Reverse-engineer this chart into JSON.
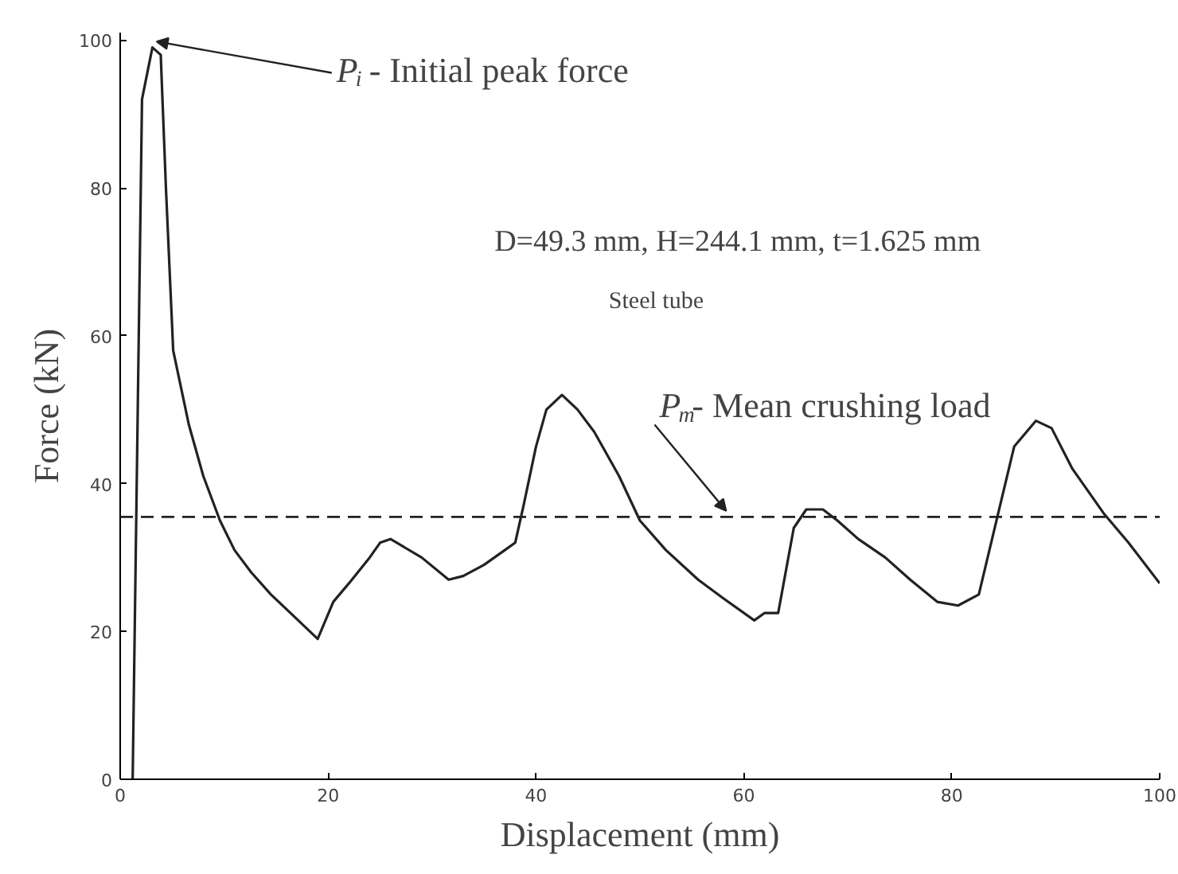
{
  "chart_data": {
    "type": "line",
    "xlabel": "Displacement (mm)",
    "ylabel": "Force (kN)",
    "xlim": [
      0,
      100
    ],
    "ylim": [
      0,
      101
    ],
    "xticks": [
      0,
      20,
      40,
      60,
      80,
      100
    ],
    "yticks": [
      0,
      20,
      40,
      60,
      80,
      100
    ],
    "grid": false,
    "marker": "none",
    "line_style": "solid",
    "series": [
      {
        "color": "#222222",
        "x": [
          1.2,
          2.1,
          3.1,
          3.9,
          4.4,
          5.1,
          6.6,
          8.0,
          9.6,
          11.0,
          12.6,
          14.5,
          16.0,
          19.0,
          20.5,
          22.0,
          24.0,
          25.0,
          26.0,
          29.0,
          31.6,
          33.0,
          35.0,
          37.0,
          38.0,
          38.8,
          40.0,
          41.0,
          42.5,
          44.0,
          45.6,
          48.0,
          50.0,
          52.5,
          55.6,
          58.0,
          61.0,
          62.0,
          63.3,
          64.8,
          66.0,
          67.6,
          69.0,
          71.0,
          73.6,
          76.0,
          78.6,
          80.6,
          82.6,
          84.3,
          86.0,
          88.1,
          89.6,
          91.6,
          94.6,
          97.0,
          100.0
        ],
        "values": [
          0,
          92,
          99,
          98,
          80,
          58,
          48,
          41,
          35,
          31,
          28,
          25,
          23,
          19,
          24,
          26.5,
          30,
          32,
          32.5,
          30,
          27,
          27.5,
          29,
          31,
          32,
          37,
          45,
          50,
          52,
          50,
          47,
          41,
          35,
          31,
          27,
          24.5,
          21.5,
          22.5,
          22.5,
          34,
          36.5,
          36.5,
          35,
          32.5,
          30,
          27,
          24,
          23.5,
          25,
          35,
          45,
          48.5,
          47.5,
          42,
          36,
          32,
          26.5
        ]
      }
    ],
    "ref_lines": [
      {
        "axis": "y",
        "value": 35.5,
        "label": null,
        "color": "#222222",
        "line_style": "dashed"
      }
    ],
    "annotations": [
      {
        "text": "P$_{i}$- Initial peak force",
        "x": 3.2,
        "y": 99
      },
      "D=49.3 mm, H=244.1 mm, t=1.625 mm",
      "Steel tube",
      {
        "text": "P$_{m}$- Mean crushing load",
        "x": 58,
        "y": 35.5
      }
    ]
  }
}
